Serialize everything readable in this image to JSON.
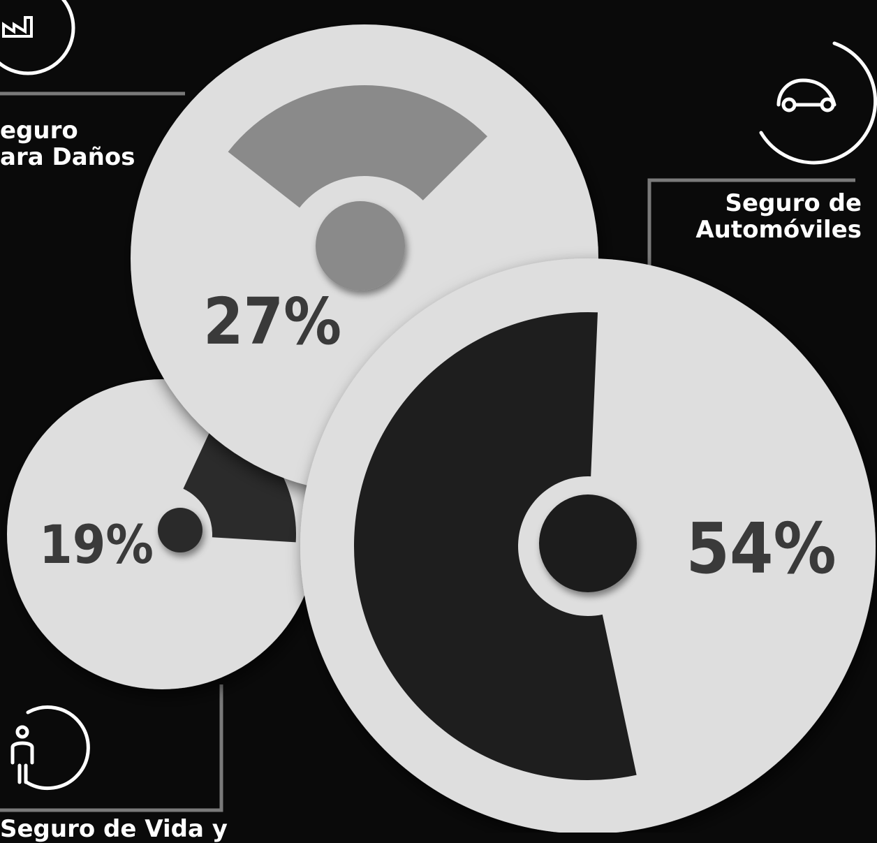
{
  "colors": {
    "background": "#0a0a0a",
    "disc": "#dedede",
    "slice_danos": "#8a8a8a",
    "slice_vida": "#2b2b2b",
    "slice_autos": "#1e1e1e",
    "label_text": "#ffffff",
    "percent_text": "#3a3a3a"
  },
  "icons": {
    "danos": "factory-icon",
    "autos": "car-icon",
    "vida": "person-icon"
  },
  "labels": {
    "danos": "eguro\nara Daños",
    "autos": "Seguro de\nAutomóviles",
    "vida": "Seguro de Vida y"
  },
  "chart_data": {
    "type": "pie",
    "categories": [
      "Seguro para Daños",
      "Seguro de Automóviles",
      "Seguro de Vida y"
    ],
    "values": [
      27,
      54,
      19
    ],
    "value_labels": [
      "27%",
      "54%",
      "19%"
    ],
    "unit": "%"
  }
}
